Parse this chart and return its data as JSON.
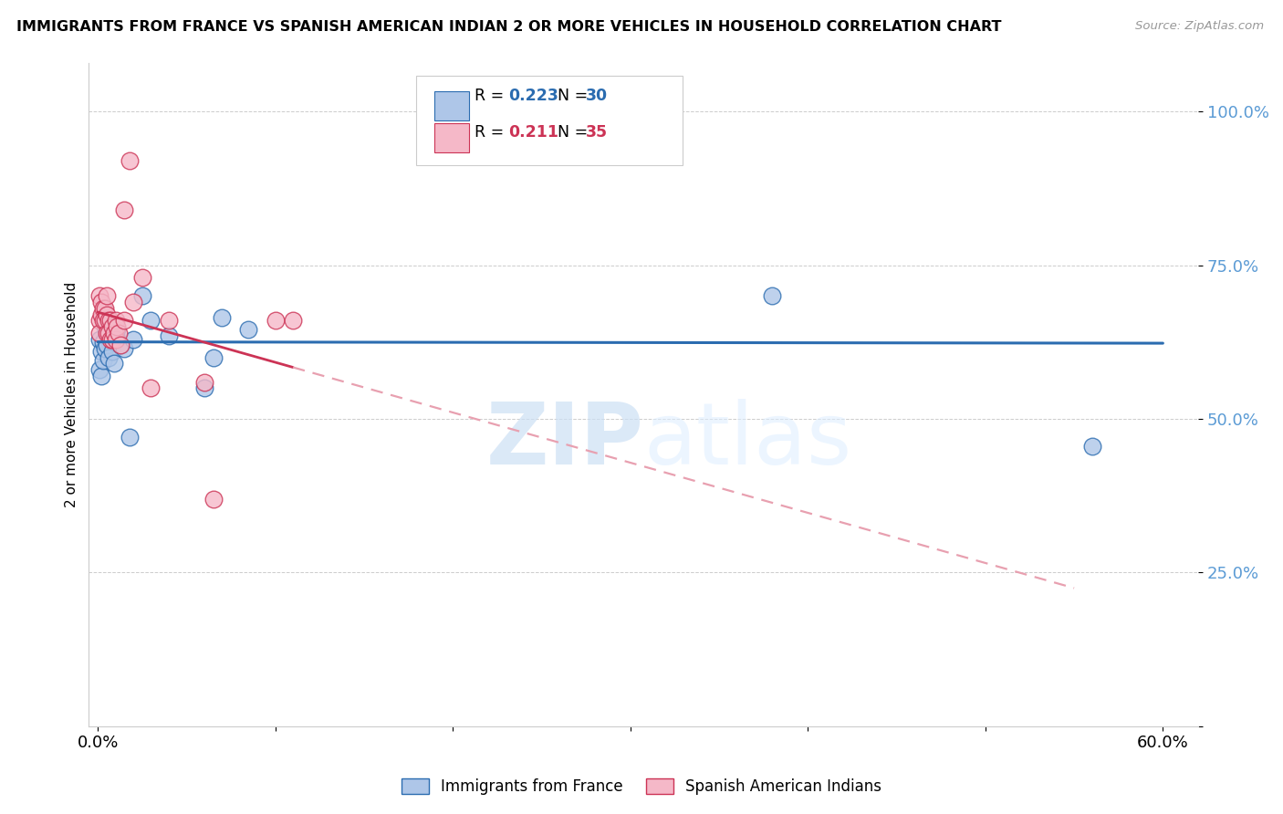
{
  "title": "IMMIGRANTS FROM FRANCE VS SPANISH AMERICAN INDIAN 2 OR MORE VEHICLES IN HOUSEHOLD CORRELATION CHART",
  "source": "Source: ZipAtlas.com",
  "ylabel": "2 or more Vehicles in Household",
  "legend_blue_R": "0.223",
  "legend_blue_N": "30",
  "legend_pink_R": "0.211",
  "legend_pink_N": "35",
  "blue_label": "Immigrants from France",
  "pink_label": "Spanish American Indians",
  "blue_color": "#aec6e8",
  "pink_color": "#f5b8c8",
  "blue_line_color": "#2b6cb0",
  "pink_line_color": "#cc3355",
  "pink_dash_color": "#e8a0b0",
  "watermark_zip": "ZIP",
  "watermark_atlas": "atlas",
  "blue_x": [
    0.001,
    0.001,
    0.002,
    0.002,
    0.003,
    0.003,
    0.004,
    0.004,
    0.005,
    0.005,
    0.006,
    0.007,
    0.008,
    0.009,
    0.01,
    0.011,
    0.013,
    0.015,
    0.018,
    0.02,
    0.025,
    0.03,
    0.04,
    0.06,
    0.065,
    0.07,
    0.085,
    0.2,
    0.38,
    0.56
  ],
  "blue_y": [
    0.63,
    0.58,
    0.61,
    0.57,
    0.625,
    0.595,
    0.65,
    0.615,
    0.64,
    0.62,
    0.6,
    0.635,
    0.61,
    0.59,
    0.635,
    0.645,
    0.62,
    0.615,
    0.47,
    0.63,
    0.7,
    0.66,
    0.635,
    0.55,
    0.6,
    0.665,
    0.645,
    0.96,
    0.7,
    0.455
  ],
  "pink_x": [
    0.001,
    0.001,
    0.001,
    0.002,
    0.002,
    0.003,
    0.003,
    0.004,
    0.004,
    0.005,
    0.005,
    0.005,
    0.006,
    0.006,
    0.007,
    0.007,
    0.008,
    0.008,
    0.009,
    0.01,
    0.01,
    0.011,
    0.012,
    0.013,
    0.015,
    0.015,
    0.018,
    0.02,
    0.025,
    0.03,
    0.04,
    0.06,
    0.065,
    0.1,
    0.11
  ],
  "pink_y": [
    0.7,
    0.66,
    0.64,
    0.69,
    0.67,
    0.68,
    0.66,
    0.68,
    0.66,
    0.7,
    0.67,
    0.64,
    0.66,
    0.64,
    0.66,
    0.63,
    0.65,
    0.63,
    0.64,
    0.66,
    0.63,
    0.65,
    0.64,
    0.62,
    0.84,
    0.66,
    0.92,
    0.69,
    0.73,
    0.55,
    0.66,
    0.56,
    0.37,
    0.66,
    0.66
  ],
  "xlim": [
    -0.005,
    0.62
  ],
  "ylim": [
    0.0,
    1.08
  ],
  "yticks": [
    0.0,
    0.25,
    0.5,
    0.75,
    1.0
  ],
  "ytick_labels": [
    "",
    "25.0%",
    "50.0%",
    "75.0%",
    "100.0%"
  ],
  "xticks": [
    0.0,
    0.1,
    0.2,
    0.3,
    0.4,
    0.5,
    0.6
  ],
  "xtick_labels": [
    "0.0%",
    "",
    "",
    "",
    "",
    "",
    "60.0%"
  ]
}
